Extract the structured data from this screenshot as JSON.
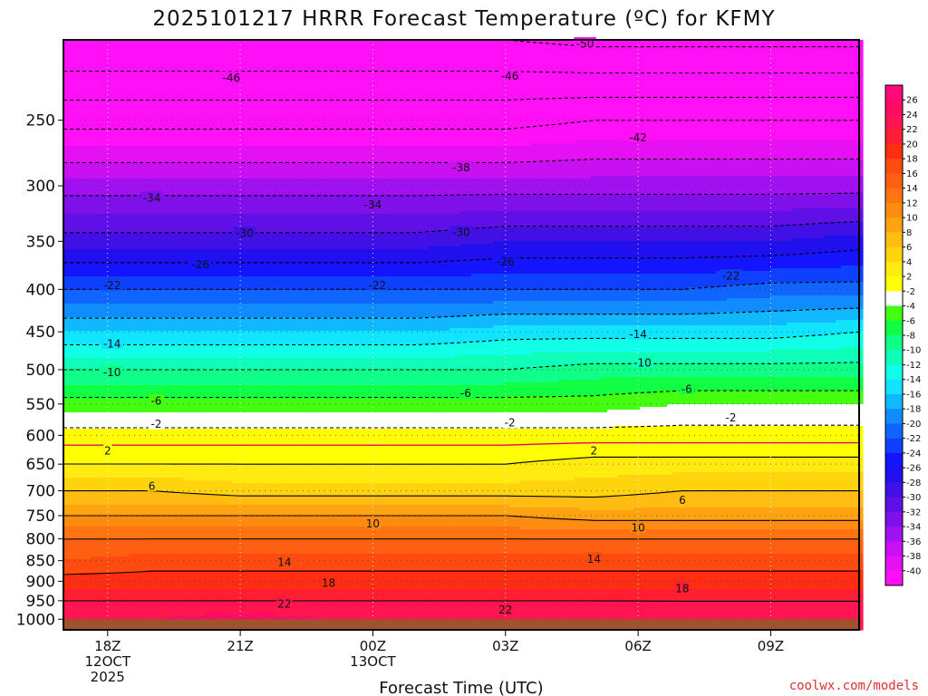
{
  "chart_data": {
    "type": "heatmap",
    "title": "2025101217 HRRR Forecast Temperature (ºC) for KFMY",
    "xlabel": "Forecast Time (UTC)",
    "ylabel": "",
    "y_scale": "log-pressure",
    "ylim": [
      1030,
      200
    ],
    "xlim": [
      -1,
      17
    ],
    "grid": true,
    "y_ticks": [
      250,
      300,
      350,
      400,
      450,
      500,
      550,
      600,
      650,
      700,
      750,
      800,
      850,
      900,
      950,
      1000
    ],
    "x_ticks": [
      {
        "hour": 0,
        "lines": [
          "18Z",
          "12OCT",
          "2025"
        ]
      },
      {
        "hour": 3,
        "lines": [
          "21Z"
        ]
      },
      {
        "hour": 6,
        "lines": [
          "00Z",
          "13OCT"
        ]
      },
      {
        "hour": 9,
        "lines": [
          "03Z"
        ]
      },
      {
        "hour": 12,
        "lines": [
          "06Z"
        ]
      },
      {
        "hour": 15,
        "lines": [
          "09Z"
        ]
      }
    ],
    "hours": [
      -1,
      1,
      3,
      5,
      7,
      9,
      11,
      13,
      15,
      17
    ],
    "levels_hpa": [
      200,
      250,
      300,
      350,
      400,
      450,
      500,
      550,
      600,
      650,
      700,
      750,
      800,
      850,
      900,
      950,
      1000,
      1030
    ],
    "temperature_c": [
      [
        -54,
        -54,
        -54,
        -54,
        -54,
        -54,
        -55,
        -55,
        -55,
        -55
      ],
      [
        -43,
        -43,
        -43,
        -43,
        -43,
        -43,
        -42,
        -42,
        -42,
        -42
      ],
      [
        -35,
        -35,
        -35,
        -35,
        -35,
        -35,
        -35,
        -35,
        -35,
        -35
      ],
      [
        -29,
        -29,
        -29,
        -29,
        -29,
        -28,
        -28,
        -28,
        -28,
        -27
      ],
      [
        -22,
        -22,
        -22,
        -22,
        -22,
        -22,
        -22,
        -22,
        -21,
        -21
      ],
      [
        -16,
        -16,
        -16,
        -16,
        -16,
        -15,
        -15,
        -15,
        -15,
        -14
      ],
      [
        -10,
        -10,
        -10,
        -10,
        -10,
        -10,
        -9,
        -9,
        -9,
        -9
      ],
      [
        -5,
        -5,
        -5,
        -5,
        -5,
        -5,
        -5,
        -4,
        -4,
        -4
      ],
      [
        -1,
        -1,
        -1,
        -1,
        -1,
        -1,
        -1,
        -1,
        -1,
        -1
      ],
      [
        2,
        2,
        2,
        2,
        2,
        2,
        3,
        3,
        3,
        3
      ],
      [
        6,
        6,
        5,
        5,
        5,
        5,
        5,
        6,
        6,
        6
      ],
      [
        10,
        10,
        10,
        10,
        10,
        10,
        9,
        9,
        9,
        9
      ],
      [
        14,
        14,
        14,
        14,
        14,
        14,
        14,
        14,
        14,
        14
      ],
      [
        16,
        17,
        17,
        17,
        17,
        17,
        17,
        17,
        17,
        17
      ],
      [
        19,
        19,
        19,
        19,
        19,
        19,
        19,
        19,
        19,
        19
      ],
      [
        22,
        22,
        22,
        22,
        22,
        22,
        22,
        22,
        22,
        22
      ],
      [
        24,
        24,
        25,
        24,
        24,
        24,
        24,
        23,
        23,
        23
      ],
      [
        24,
        24,
        25,
        24,
        24,
        24,
        24,
        23,
        23,
        23
      ]
    ],
    "contour_labels": [
      {
        "hour": 2.8,
        "p": 222,
        "text": "-46"
      },
      {
        "hour": 9.1,
        "p": 221,
        "text": "-46"
      },
      {
        "hour": 10.8,
        "p": 202,
        "text": "-50"
      },
      {
        "hour": 12.0,
        "p": 262,
        "text": "-42"
      },
      {
        "hour": 8.0,
        "p": 285,
        "text": "-38"
      },
      {
        "hour": 1.0,
        "p": 310,
        "text": "-34"
      },
      {
        "hour": 6.0,
        "p": 316,
        "text": "-34"
      },
      {
        "hour": 3.1,
        "p": 342,
        "text": "-30"
      },
      {
        "hour": 8.0,
        "p": 341,
        "text": "-30"
      },
      {
        "hour": 2.1,
        "p": 373,
        "text": "-26"
      },
      {
        "hour": 9.0,
        "p": 370,
        "text": "-26"
      },
      {
        "hour": 0.1,
        "p": 395,
        "text": "-22"
      },
      {
        "hour": 6.1,
        "p": 395,
        "text": "-22"
      },
      {
        "hour": 14.1,
        "p": 385,
        "text": "-22"
      },
      {
        "hour": 0.1,
        "p": 465,
        "text": "-14"
      },
      {
        "hour": 12.0,
        "p": 453,
        "text": "-14"
      },
      {
        "hour": 0.1,
        "p": 503,
        "text": "-10"
      },
      {
        "hour": 12.1,
        "p": 490,
        "text": "-10"
      },
      {
        "hour": 1.1,
        "p": 545,
        "text": "-6"
      },
      {
        "hour": 8.1,
        "p": 533,
        "text": "-6"
      },
      {
        "hour": 13.1,
        "p": 527,
        "text": "-6"
      },
      {
        "hour": 1.1,
        "p": 581,
        "text": "-2"
      },
      {
        "hour": 9.1,
        "p": 579,
        "text": "-2"
      },
      {
        "hour": 14.1,
        "p": 571,
        "text": "-2"
      },
      {
        "hour": 0.0,
        "p": 626,
        "text": "2"
      },
      {
        "hour": 11.0,
        "p": 626,
        "text": "2"
      },
      {
        "hour": 1.0,
        "p": 690,
        "text": "6"
      },
      {
        "hour": 13.0,
        "p": 718,
        "text": "6"
      },
      {
        "hour": 6.0,
        "p": 766,
        "text": "10"
      },
      {
        "hour": 12.0,
        "p": 775,
        "text": "10"
      },
      {
        "hour": 4.0,
        "p": 853,
        "text": "14"
      },
      {
        "hour": 11.0,
        "p": 845,
        "text": "14"
      },
      {
        "hour": 5.0,
        "p": 904,
        "text": "18"
      },
      {
        "hour": 13.0,
        "p": 917,
        "text": "18"
      },
      {
        "hour": 4.0,
        "p": 958,
        "text": "22"
      },
      {
        "hour": 9.0,
        "p": 973,
        "text": "22"
      }
    ],
    "colorbar": {
      "labels": [
        "26",
        "24",
        "22",
        "20",
        "18",
        "16",
        "14",
        "12",
        "10",
        "8",
        "6",
        "4",
        "2",
        "-2",
        "-4",
        "-6",
        "-8",
        "-10",
        "-12",
        "-14",
        "-16",
        "-18",
        "-20",
        "-22",
        "-24",
        "-26",
        "-28",
        "-30",
        "-32",
        "-34",
        "-36",
        "-38",
        "-40"
      ],
      "colors": [
        "#ff0a78",
        "#ff0a64",
        "#ff1650",
        "#ff1e32",
        "#ff2e12",
        "#ff4a10",
        "#ff5f10",
        "#ff7410",
        "#ff8c10",
        "#ffa410",
        "#ffbc12",
        "#ffd40c",
        "#ffeb10",
        "#ffff00",
        "#ffffff",
        "#44ff10",
        "#10ff44",
        "#10ff88",
        "#10ffb8",
        "#10ffe6",
        "#10e4ff",
        "#10b8ff",
        "#108cff",
        "#1064ff",
        "#1040ff",
        "#1414ff",
        "#2010f0",
        "#4010e6",
        "#6010e6",
        "#8010ea",
        "#a010f0",
        "#c810f2",
        "#e610f4",
        "#ff10f6"
      ]
    },
    "ground_color": "#a0522d",
    "freezing_line_color": "#e0007a"
  },
  "credit": "coolwx.com/models"
}
